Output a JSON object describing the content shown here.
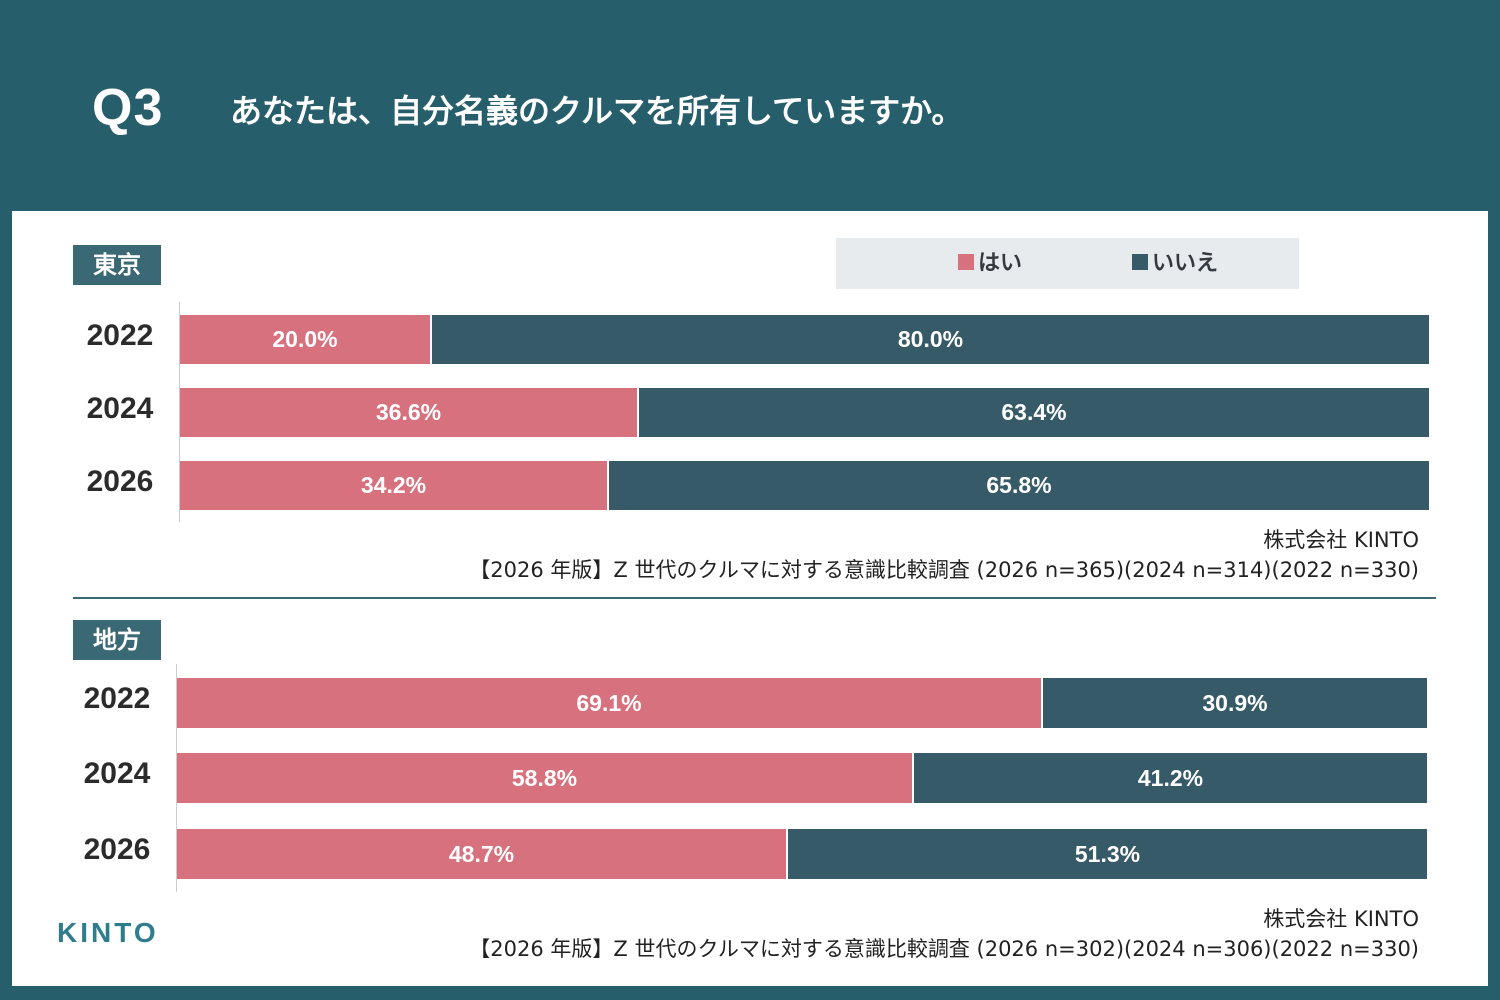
{
  "header": {
    "q_number": "Q3",
    "question": "あなたは、自分名義のクルマを所有していますか。"
  },
  "legend": [
    {
      "label": "はい",
      "color": "#d8717e"
    },
    {
      "label": "いいえ",
      "color": "#365a68"
    }
  ],
  "chart_data": [
    {
      "type": "bar",
      "orientation": "horizontal-stacked-100",
      "title": "東京",
      "categories": [
        "2022",
        "2024",
        "2026"
      ],
      "series": [
        {
          "name": "はい",
          "values": [
            20.0,
            36.6,
            34.2
          ],
          "labels": [
            "20.0%",
            "36.6%",
            "34.2%"
          ]
        },
        {
          "name": "いいえ",
          "values": [
            80.0,
            63.4,
            65.8
          ],
          "labels": [
            "80.0%",
            "63.4%",
            "65.8%"
          ]
        }
      ],
      "xlim": [
        0,
        100
      ],
      "source_company": "株式会社 KINTO",
      "source_note": "【2026 年版】Z 世代のクルマに対する意識比較調査 (2026 n=365)(2024 n=314)(2022 n=330)"
    },
    {
      "type": "bar",
      "orientation": "horizontal-stacked-100",
      "title": "地方",
      "categories": [
        "2022",
        "2024",
        "2026"
      ],
      "series": [
        {
          "name": "はい",
          "values": [
            69.1,
            58.8,
            48.7
          ],
          "labels": [
            "69.1%",
            "58.8%",
            "48.7%"
          ]
        },
        {
          "name": "いいえ",
          "values": [
            30.9,
            41.2,
            51.3
          ],
          "labels": [
            "30.9%",
            "41.2%",
            "51.3%"
          ]
        }
      ],
      "xlim": [
        0,
        100
      ],
      "source_company": "株式会社 KINTO",
      "source_note": "【2026 年版】Z 世代のクルマに対する意識比較調査 (2026 n=302)(2024 n=306)(2022 n=330)"
    }
  ],
  "footer": {
    "logo": "KINTO"
  }
}
